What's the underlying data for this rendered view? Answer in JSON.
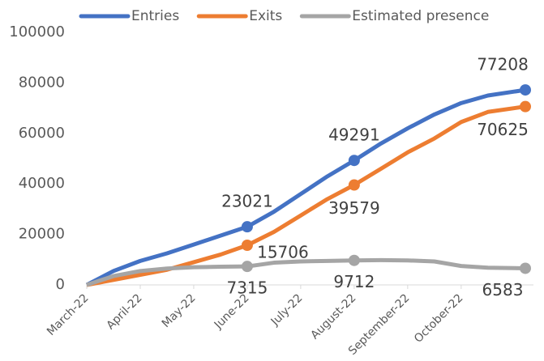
{
  "chart_data": {
    "type": "line",
    "xlim": [
      0,
      8.2
    ],
    "xticks": [
      {
        "value": 0,
        "label": "March-22"
      },
      {
        "value": 1,
        "label": "April-22"
      },
      {
        "value": 2,
        "label": "May-22"
      },
      {
        "value": 3,
        "label": "June-22"
      },
      {
        "value": 4,
        "label": "July-22"
      },
      {
        "value": 5,
        "label": "August-22"
      },
      {
        "value": 6,
        "label": "September-22"
      },
      {
        "value": 7,
        "label": "October-22"
      }
    ],
    "ylim": [
      0,
      100000
    ],
    "yticks": [
      0,
      20000,
      40000,
      60000,
      80000,
      100000
    ],
    "grid": false,
    "legend": "top",
    "x": [
      0,
      0.5,
      1,
      1.5,
      2,
      2.5,
      3,
      3.5,
      4,
      4.5,
      5,
      5.5,
      6,
      6.5,
      7,
      7.5,
      8.2
    ],
    "series": [
      {
        "name": "Entries",
        "color": "#4472c4",
        "values": [
          0,
          5500,
          9500,
          12500,
          16000,
          19500,
          23021,
          29000,
          36000,
          43000,
          49291,
          56000,
          62000,
          67500,
          72000,
          75000,
          77208
        ],
        "value_labels": [
          null,
          null,
          null,
          null,
          null,
          null,
          "23021",
          null,
          null,
          null,
          "49291",
          null,
          null,
          null,
          null,
          null,
          "77208"
        ]
      },
      {
        "name": "Exits",
        "color": "#ed7d31",
        "values": [
          0,
          2000,
          4000,
          6000,
          9000,
          12000,
          15706,
          21000,
          27500,
          34000,
          39579,
          46000,
          52500,
          58000,
          64500,
          68500,
          70625
        ],
        "value_labels": [
          null,
          null,
          null,
          null,
          null,
          null,
          "15706",
          null,
          null,
          null,
          "39579",
          null,
          null,
          null,
          null,
          null,
          "70625"
        ]
      },
      {
        "name": "Estimated presence",
        "color": "#a5a5a5",
        "values": [
          0,
          3500,
          5500,
          6500,
          7000,
          7200,
          7315,
          8800,
          9300,
          9500,
          9712,
          9800,
          9700,
          9300,
          7500,
          6800,
          6583
        ],
        "value_labels": [
          null,
          null,
          null,
          null,
          null,
          null,
          "7315",
          null,
          null,
          null,
          "9712",
          null,
          null,
          null,
          null,
          null,
          "6583"
        ]
      }
    ]
  }
}
